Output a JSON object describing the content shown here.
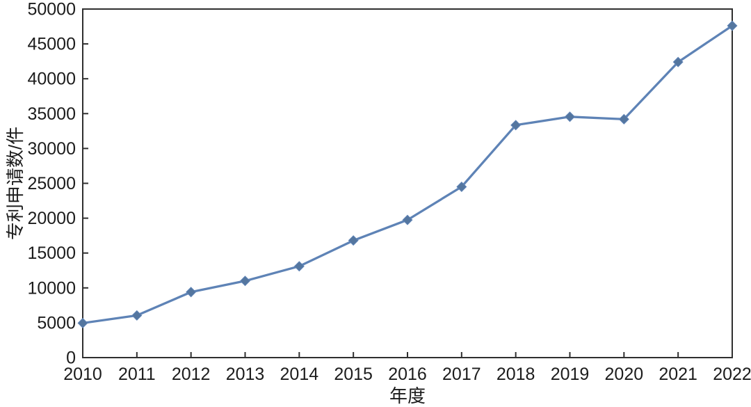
{
  "figure": {
    "background": "#ffffff"
  },
  "chart_data": {
    "type": "line",
    "title": "",
    "xlabel": "年度",
    "ylabel": "专利申请数/件",
    "x": [
      "2010",
      "2011",
      "2012",
      "2013",
      "2014",
      "2015",
      "2016",
      "2017",
      "2018",
      "2019",
      "2020",
      "2021",
      "2022"
    ],
    "series": [
      {
        "name": "专利申请数",
        "values": [
          4950,
          6050,
          9400,
          11000,
          13100,
          16800,
          19750,
          24500,
          33350,
          34550,
          34200,
          42400,
          47600
        ]
      }
    ],
    "ylim": [
      0,
      50000
    ],
    "ytick_step": 5000,
    "yticks": [
      0,
      5000,
      10000,
      15000,
      20000,
      25000,
      30000,
      35000,
      40000,
      45000,
      50000
    ],
    "grid": false,
    "legend": "none",
    "marker": "diamond",
    "line_color": "#5e83b6",
    "marker_color": "#54769f",
    "axis_color": "#2f2f2f",
    "text_color": "#1c1c1c"
  }
}
